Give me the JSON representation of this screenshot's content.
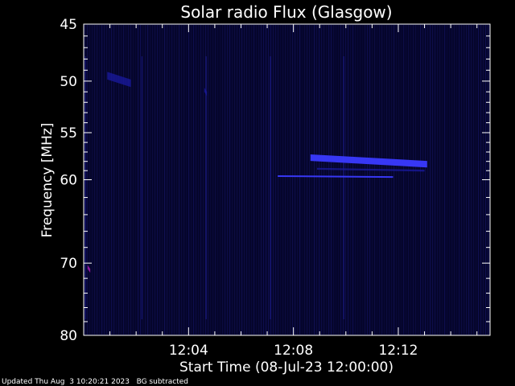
{
  "chart_data": {
    "type": "heatmap",
    "title": "Solar radio Flux (Glasgow)",
    "xlabel": "Start Time (08-Jul-23 12:00:00)",
    "ylabel": "Frequency [MHz]",
    "x_range_minutes": [
      0,
      15.5
    ],
    "x_ticks": [
      {
        "minute": 4,
        "label": "12:04"
      },
      {
        "minute": 8,
        "label": "12:08"
      },
      {
        "minute": 12,
        "label": "12:12"
      }
    ],
    "y_scale": "log",
    "y_range_mhz": [
      45,
      80
    ],
    "y_ticks": [
      {
        "mhz": 45,
        "label": "45"
      },
      {
        "mhz": 50,
        "label": "50"
      },
      {
        "mhz": 55,
        "label": "55"
      },
      {
        "mhz": 60,
        "label": "60"
      },
      {
        "mhz": 70,
        "label": "70"
      },
      {
        "mhz": 80,
        "label": "80"
      }
    ],
    "colors": {
      "background": "#000000",
      "field": "#05052a",
      "weak": "#1a1aa0",
      "strong": "#3a3aff",
      "hot": "#9a1aa8"
    },
    "features": [
      {
        "name": "band-57.6",
        "x_start": 8.65,
        "x_end": 13.1,
        "mhz_start": 57.6,
        "mhz_end": 58.3,
        "intensity": "strong"
      },
      {
        "name": "band-58.8",
        "x_start": 8.9,
        "x_end": 13.0,
        "mhz_start": 58.8,
        "mhz_end": 59.0,
        "intensity": "weak"
      },
      {
        "name": "band-59.6",
        "x_start": 7.4,
        "x_end": 11.8,
        "mhz_start": 59.6,
        "mhz_end": 59.7,
        "intensity": "strong"
      },
      {
        "name": "spot-70.7",
        "x_start": 0.15,
        "x_end": 0.25,
        "mhz_start": 70.5,
        "mhz_end": 71.0,
        "intensity": "hot"
      },
      {
        "name": "spot-51",
        "x_start": 4.6,
        "x_end": 4.7,
        "mhz_start": 50.8,
        "mhz_end": 51.2,
        "intensity": "weak"
      },
      {
        "name": "spot-50",
        "x_start": 0.9,
        "x_end": 1.8,
        "mhz_start": 49.5,
        "mhz_end": 50.2,
        "intensity": "weak"
      }
    ]
  },
  "footer": {
    "text": "Updated Thu Aug  3 10:20:21 2023   BG subtracted"
  }
}
